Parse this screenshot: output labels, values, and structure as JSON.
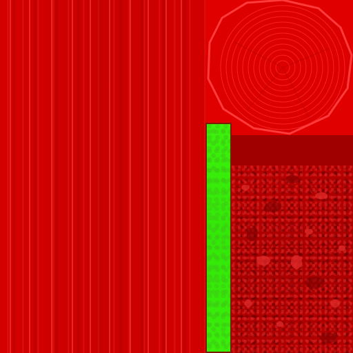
{
  "texture": {
    "colors": {
      "bark_base": "#cc0000",
      "bark_streak": "#ff4646",
      "ring_background": "#e10000",
      "ring_lines": "#ff3030",
      "dark_strip": "#a00000",
      "green_column": "#38ec0a",
      "green_border": "#7a1a00",
      "stone_base": "#ad0000",
      "stone_highlight": "#e42a2a"
    },
    "regions": [
      "bark-grain",
      "tree-ring-cross-section",
      "green-strip",
      "dark-strip",
      "rough-stone"
    ]
  }
}
